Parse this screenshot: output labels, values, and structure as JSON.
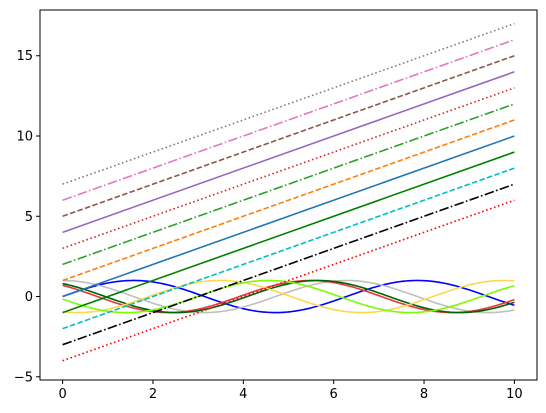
{
  "chart_data": {
    "type": "line",
    "title": "",
    "xlabel": "",
    "ylabel": "",
    "xlim": [
      -0.5,
      10.5
    ],
    "ylim": [
      -5.2,
      17.85
    ],
    "xticks": [
      0,
      2,
      4,
      6,
      8,
      10
    ],
    "yticks": [
      -5,
      0,
      5,
      10,
      15
    ],
    "grid": false,
    "legend": "none",
    "linear_series": [
      {
        "color": "#ff0000",
        "dash": "dotted",
        "x": [
          0,
          10
        ],
        "y": [
          -4,
          6
        ]
      },
      {
        "color": "#000000",
        "dash": "dashdot",
        "x": [
          0,
          10
        ],
        "y": [
          -3,
          7
        ]
      },
      {
        "color": "#00bfbf",
        "dash": "dashed",
        "x": [
          0,
          10
        ],
        "y": [
          -2,
          8
        ]
      },
      {
        "color": "#008000",
        "dash": "solid",
        "x": [
          0,
          10
        ],
        "y": [
          -1,
          9
        ]
      },
      {
        "color": "#1f77b4",
        "dash": "solid",
        "x": [
          0,
          10
        ],
        "y": [
          0,
          10
        ]
      },
      {
        "color": "#ff7f0e",
        "dash": "dashed",
        "x": [
          0,
          10
        ],
        "y": [
          1,
          11
        ]
      },
      {
        "color": "#2ca02c",
        "dash": "dashdot",
        "x": [
          0,
          10
        ],
        "y": [
          2,
          12
        ]
      },
      {
        "color": "#d62728",
        "dash": "dotted",
        "x": [
          0,
          10
        ],
        "y": [
          3,
          13
        ]
      },
      {
        "color": "#9467bd",
        "dash": "solid",
        "x": [
          0,
          10
        ],
        "y": [
          4,
          14
        ]
      },
      {
        "color": "#8c564b",
        "dash": "dashed",
        "x": [
          0,
          10
        ],
        "y": [
          5,
          15
        ]
      },
      {
        "color": "#e377c2",
        "dash": "dashdot",
        "x": [
          0,
          10
        ],
        "y": [
          6,
          16
        ]
      },
      {
        "color": "#7f7f7f",
        "dash": "dotted",
        "x": [
          0,
          10
        ],
        "y": [
          7,
          17
        ]
      }
    ],
    "wave_series": [
      {
        "color": "#0000ff",
        "function": "sin",
        "phase": 0
      },
      {
        "color": "#bfbfbf",
        "function": "cos",
        "phase": 0
      },
      {
        "color": "#e8363f",
        "function": "cos",
        "phase": 0.8
      },
      {
        "color": "#006400",
        "function": "sin",
        "phase": 2.2
      },
      {
        "color": "#ffd84a",
        "function": "cos",
        "phase": 2.8
      },
      {
        "color": "#7cfc00",
        "function": "sin",
        "phase": 3.3
      }
    ],
    "wave_x_range": [
      0,
      10
    ],
    "wave_amplitude": 1
  }
}
